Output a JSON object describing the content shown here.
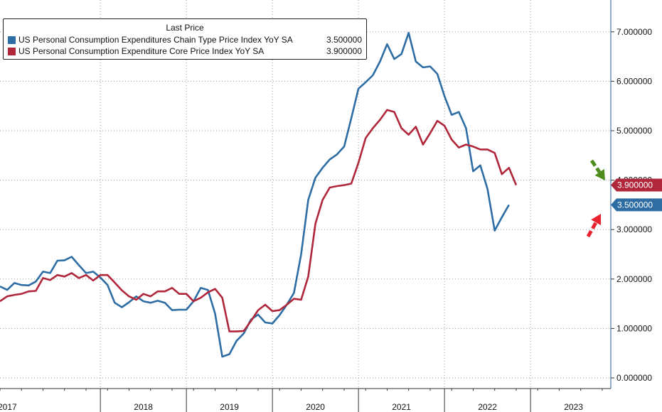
{
  "legend": {
    "title": "Last Price",
    "items": [
      {
        "name": "US Personal Consumption Expenditures Chain Type Price Index YoY SA",
        "value": "3.500000",
        "color": "#2e6da4"
      },
      {
        "name": "US Personal Consumption Expenditure Core Price Index YoY SA",
        "value": "3.900000",
        "color": "#b0263a"
      }
    ]
  },
  "chart_data": {
    "type": "line",
    "ylim": [
      0,
      7.5
    ],
    "yticks": [
      "0.000000",
      "1.000000",
      "2.000000",
      "3.000000",
      "4.000000",
      "5.000000",
      "6.000000",
      "7.000000"
    ],
    "ytick_values": [
      0,
      1,
      2,
      3,
      4,
      5,
      6,
      7
    ],
    "y_axis_position": "right",
    "xlim": [
      "2016-11",
      "2023-12"
    ],
    "year_labels": [
      "2017",
      "2018",
      "2019",
      "2020",
      "2021",
      "2022",
      "2023"
    ],
    "grid": "dotted",
    "legend_position": "top-left",
    "series": [
      {
        "name": "US Personal Consumption Expenditures Chain Type Price Index YoY SA",
        "color": "#2e6da4",
        "last_label": "3.500000",
        "points": [
          [
            "2016-11",
            1.85
          ],
          [
            "2016-12",
            1.78
          ],
          [
            "2017-01",
            1.92
          ],
          [
            "2017-02",
            1.88
          ],
          [
            "2017-03",
            1.87
          ],
          [
            "2017-04",
            1.95
          ],
          [
            "2017-05",
            2.15
          ],
          [
            "2017-06",
            2.12
          ],
          [
            "2017-07",
            2.37
          ],
          [
            "2017-08",
            2.38
          ],
          [
            "2017-09",
            2.45
          ],
          [
            "2017-10",
            2.28
          ],
          [
            "2017-11",
            2.12
          ],
          [
            "2017-12",
            2.15
          ],
          [
            "2018-01",
            2.03
          ],
          [
            "2018-02",
            1.88
          ],
          [
            "2018-03",
            1.52
          ],
          [
            "2018-04",
            1.43
          ],
          [
            "2018-05",
            1.53
          ],
          [
            "2018-06",
            1.65
          ],
          [
            "2018-07",
            1.55
          ],
          [
            "2018-08",
            1.52
          ],
          [
            "2018-09",
            1.56
          ],
          [
            "2018-10",
            1.52
          ],
          [
            "2018-11",
            1.37
          ],
          [
            "2018-12",
            1.38
          ],
          [
            "2019-01",
            1.38
          ],
          [
            "2019-02",
            1.55
          ],
          [
            "2019-03",
            1.82
          ],
          [
            "2019-04",
            1.78
          ],
          [
            "2019-05",
            1.3
          ],
          [
            "2019-06",
            0.43
          ],
          [
            "2019-07",
            0.48
          ],
          [
            "2019-08",
            0.75
          ],
          [
            "2019-09",
            0.9
          ],
          [
            "2019-10",
            1.18
          ],
          [
            "2019-11",
            1.28
          ],
          [
            "2019-12",
            1.12
          ],
          [
            "2020-01",
            1.1
          ],
          [
            "2020-02",
            1.27
          ],
          [
            "2020-03",
            1.48
          ],
          [
            "2020-04",
            1.72
          ],
          [
            "2020-05",
            2.5
          ],
          [
            "2020-06",
            3.6
          ],
          [
            "2020-07",
            4.05
          ],
          [
            "2020-08",
            4.25
          ],
          [
            "2020-09",
            4.42
          ],
          [
            "2020-10",
            4.52
          ],
          [
            "2020-11",
            4.68
          ],
          [
            "2020-12",
            5.25
          ],
          [
            "2021-01",
            5.85
          ],
          [
            "2021-02",
            5.98
          ],
          [
            "2021-03",
            6.12
          ],
          [
            "2021-04",
            6.4
          ],
          [
            "2021-05",
            6.75
          ],
          [
            "2021-06",
            6.45
          ],
          [
            "2021-07",
            6.55
          ],
          [
            "2021-08",
            6.98
          ],
          [
            "2021-09",
            6.4
          ],
          [
            "2021-10",
            6.28
          ],
          [
            "2021-11",
            6.3
          ],
          [
            "2021-12",
            6.15
          ],
          [
            "2022-01",
            5.7
          ],
          [
            "2022-02",
            5.32
          ],
          [
            "2022-03",
            5.38
          ],
          [
            "2022-04",
            5.05
          ],
          [
            "2022-05",
            4.18
          ],
          [
            "2022-06",
            4.3
          ],
          [
            "2022-07",
            3.82
          ],
          [
            "2022-08",
            2.98
          ],
          [
            "2022-09",
            3.25
          ],
          [
            "2022-10",
            3.5
          ]
        ]
      },
      {
        "name": "US Personal Consumption Expenditure Core Price Index YoY SA",
        "color": "#b0263a",
        "last_label": "3.900000",
        "points": [
          [
            "2016-11",
            1.55
          ],
          [
            "2016-12",
            1.65
          ],
          [
            "2017-01",
            1.68
          ],
          [
            "2017-02",
            1.7
          ],
          [
            "2017-03",
            1.75
          ],
          [
            "2017-04",
            1.76
          ],
          [
            "2017-05",
            2.02
          ],
          [
            "2017-06",
            1.98
          ],
          [
            "2017-07",
            2.08
          ],
          [
            "2017-08",
            2.05
          ],
          [
            "2017-09",
            2.12
          ],
          [
            "2017-10",
            2.02
          ],
          [
            "2017-11",
            2.08
          ],
          [
            "2017-12",
            1.97
          ],
          [
            "2018-01",
            2.08
          ],
          [
            "2018-02",
            2.08
          ],
          [
            "2018-03",
            1.93
          ],
          [
            "2018-04",
            1.77
          ],
          [
            "2018-05",
            1.65
          ],
          [
            "2018-06",
            1.58
          ],
          [
            "2018-07",
            1.7
          ],
          [
            "2018-08",
            1.65
          ],
          [
            "2018-09",
            1.75
          ],
          [
            "2018-10",
            1.75
          ],
          [
            "2018-11",
            1.82
          ],
          [
            "2018-12",
            1.7
          ],
          [
            "2019-01",
            1.7
          ],
          [
            "2019-02",
            1.55
          ],
          [
            "2019-03",
            1.62
          ],
          [
            "2019-04",
            1.73
          ],
          [
            "2019-05",
            1.8
          ],
          [
            "2019-06",
            1.62
          ],
          [
            "2019-07",
            0.94
          ],
          [
            "2019-08",
            0.94
          ],
          [
            "2019-09",
            0.95
          ],
          [
            "2019-10",
            1.15
          ],
          [
            "2019-11",
            1.37
          ],
          [
            "2019-12",
            1.48
          ],
          [
            "2020-01",
            1.35
          ],
          [
            "2020-02",
            1.37
          ],
          [
            "2020-03",
            1.48
          ],
          [
            "2020-04",
            1.6
          ],
          [
            "2020-05",
            1.58
          ],
          [
            "2020-06",
            2.05
          ],
          [
            "2020-07",
            3.12
          ],
          [
            "2020-08",
            3.6
          ],
          [
            "2020-09",
            3.85
          ],
          [
            "2020-10",
            3.88
          ],
          [
            "2020-11",
            3.9
          ],
          [
            "2020-12",
            3.93
          ],
          [
            "2021-01",
            4.35
          ],
          [
            "2021-02",
            4.85
          ],
          [
            "2021-03",
            5.05
          ],
          [
            "2021-04",
            5.22
          ],
          [
            "2021-05",
            5.42
          ],
          [
            "2021-06",
            5.38
          ],
          [
            "2021-07",
            5.05
          ],
          [
            "2021-08",
            4.92
          ],
          [
            "2021-09",
            5.08
          ],
          [
            "2021-10",
            4.72
          ],
          [
            "2021-11",
            4.95
          ],
          [
            "2021-12",
            5.2
          ],
          [
            "2022-01",
            5.1
          ],
          [
            "2022-02",
            4.82
          ],
          [
            "2022-03",
            4.66
          ],
          [
            "2022-04",
            4.72
          ],
          [
            "2022-05",
            4.68
          ],
          [
            "2022-06",
            4.62
          ],
          [
            "2022-07",
            4.62
          ],
          [
            "2022-08",
            4.55
          ],
          [
            "2022-09",
            4.12
          ],
          [
            "2022-10",
            4.25
          ],
          [
            "2022-11",
            3.9
          ]
        ]
      }
    ],
    "annotations": [
      {
        "type": "arrow",
        "direction": "down-right",
        "color": "#4e8c1d",
        "target_series": "US Personal Consumption Expenditure Core Price Index YoY SA"
      },
      {
        "type": "arrow",
        "direction": "up-right",
        "color": "#e8232f",
        "target_series": "US Personal Consumption Expenditures Chain Type Price Index YoY SA"
      }
    ]
  }
}
